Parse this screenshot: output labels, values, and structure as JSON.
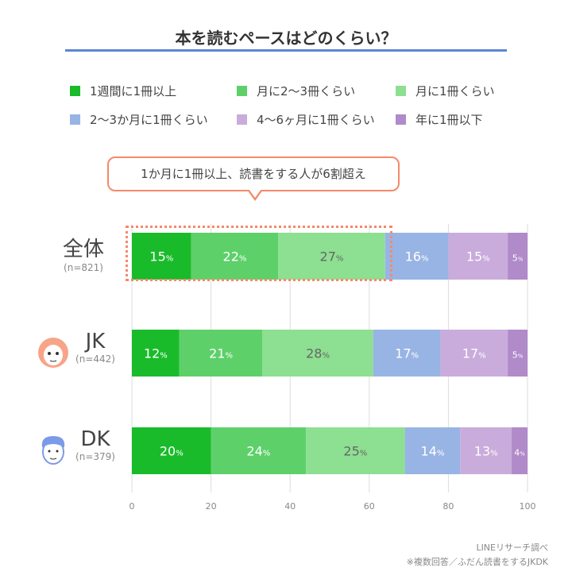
{
  "title": "本を読むペースはどのくらい？",
  "callout": "1か月に1冊以上、読書をする人が6割超え",
  "footer": {
    "source": "LINEリサーチ調べ",
    "note": "※複数回答／ふだん読書をするJKDK"
  },
  "chart_data": {
    "type": "bar",
    "orientation": "horizontal-stacked",
    "categories": [
      "全体",
      "JK",
      "DK"
    ],
    "category_n": [
      "(n=821)",
      "(n=442)",
      "(n=379)"
    ],
    "series": [
      {
        "name": "1週間に1冊以上",
        "color": "#1abb2a",
        "values": [
          15,
          12,
          20
        ]
      },
      {
        "name": "月に2〜3冊くらい",
        "color": "#5ed06a",
        "values": [
          22,
          21,
          24
        ]
      },
      {
        "name": "月に1冊くらい",
        "color": "#8ddf91",
        "values": [
          27,
          28,
          25
        ]
      },
      {
        "name": "2〜3か月に1冊くらい",
        "color": "#98b4e4",
        "values": [
          16,
          17,
          14
        ]
      },
      {
        "name": "4〜6ヶ月に1冊くらい",
        "color": "#c9acdb",
        "values": [
          15,
          17,
          13
        ]
      },
      {
        "name": "年に1冊以下",
        "color": "#b08ac9",
        "values": [
          5,
          5,
          4
        ]
      }
    ],
    "value_suffix": "%",
    "xlim": [
      0,
      100
    ],
    "xticks": [
      "0",
      "20",
      "40",
      "60",
      "80",
      "100"
    ],
    "grid": true,
    "legend": "top"
  }
}
